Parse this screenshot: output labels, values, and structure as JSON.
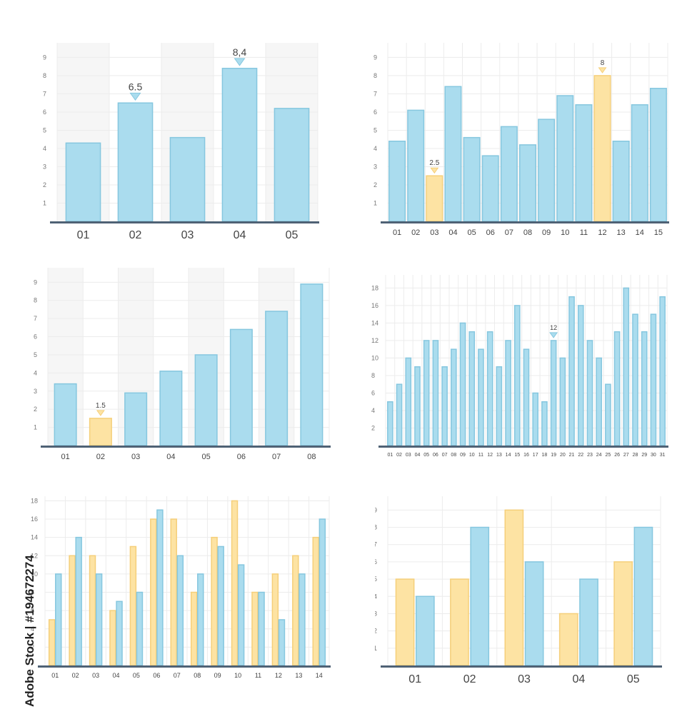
{
  "colors": {
    "blue_fill": "#aadcee",
    "blue_stroke": "#86c7df",
    "yellow_fill": "#fde3a3",
    "yellow_stroke": "#f5cf7a",
    "baseline": "#4f6275",
    "grid": "#ececec",
    "band": "#f6f6f6",
    "tick_text": "#777777",
    "label_text": "#444444"
  },
  "watermark_text": "Adobe Stock | #194672274",
  "chart_data": [
    {
      "type": "bar",
      "categories": [
        "01",
        "02",
        "03",
        "04",
        "05"
      ],
      "series": [
        {
          "values": [
            4.3,
            6.5,
            4.6,
            8.4,
            6.2
          ]
        }
      ],
      "highlight": [],
      "annotations": [
        {
          "index": 1,
          "label": "6.5"
        },
        {
          "index": 3,
          "label": "8,4"
        }
      ],
      "ylim": [
        0,
        9.8
      ],
      "yticks": [
        "1",
        "2",
        "3",
        "4",
        "5",
        "6",
        "7",
        "8",
        "9"
      ],
      "bands": true,
      "xlabel": "",
      "ylabel": "",
      "title": ""
    },
    {
      "type": "bar",
      "categories": [
        "01",
        "02",
        "03",
        "04",
        "05",
        "06",
        "07",
        "08",
        "09",
        "10",
        "11",
        "12",
        "13",
        "14",
        "15"
      ],
      "series": [
        {
          "values": [
            4.4,
            6.1,
            2.5,
            7.4,
            4.6,
            3.6,
            5.2,
            4.2,
            5.6,
            6.9,
            6.4,
            8,
            4.4,
            6.4,
            7.3
          ]
        }
      ],
      "highlight": [
        2,
        11
      ],
      "annotations": [
        {
          "index": 2,
          "label": "2.5"
        },
        {
          "index": 11,
          "label": "8"
        }
      ],
      "ylim": [
        0,
        9.8
      ],
      "yticks": [
        "1",
        "2",
        "3",
        "4",
        "5",
        "6",
        "7",
        "8",
        "9"
      ],
      "bands": false,
      "xlabel": "",
      "ylabel": "",
      "title": ""
    },
    {
      "type": "bar",
      "categories": [
        "01",
        "02",
        "03",
        "04",
        "05",
        "06",
        "07",
        "08"
      ],
      "series": [
        {
          "values": [
            3.4,
            1.5,
            2.9,
            4.1,
            5.0,
            6.4,
            7.4,
            8.9
          ]
        }
      ],
      "highlight": [
        1
      ],
      "annotations": [
        {
          "index": 1,
          "label": "1.5"
        }
      ],
      "ylim": [
        0,
        9.8
      ],
      "yticks": [
        "1",
        "2",
        "3",
        "4",
        "5",
        "6",
        "7",
        "8",
        "9"
      ],
      "bands": true,
      "xlabel": "",
      "ylabel": "",
      "title": ""
    },
    {
      "type": "bar",
      "categories": [
        "01",
        "02",
        "03",
        "04",
        "05",
        "06",
        "07",
        "08",
        "09",
        "10",
        "11",
        "12",
        "13",
        "14",
        "15",
        "16",
        "17",
        "18",
        "19",
        "20",
        "21",
        "22",
        "23",
        "24",
        "25",
        "26",
        "27",
        "28",
        "29",
        "30",
        "31"
      ],
      "series": [
        {
          "values": [
            5,
            7,
            10,
            9,
            12,
            12,
            9,
            11,
            14,
            13,
            11,
            13,
            9,
            12,
            16,
            11,
            6,
            5,
            12,
            10,
            17,
            16,
            12,
            10,
            7,
            13,
            18,
            15,
            13,
            15,
            17
          ]
        }
      ],
      "highlight": [],
      "annotations": [
        {
          "index": 18,
          "label": "12"
        }
      ],
      "ylim": [
        0,
        19.5
      ],
      "yticks": [
        "2",
        "4",
        "6",
        "8",
        "10",
        "12",
        "14",
        "16",
        "18"
      ],
      "bands": false,
      "xlabel": "",
      "ylabel": "",
      "title": ""
    },
    {
      "type": "bar",
      "categories": [
        "01",
        "02",
        "03",
        "04",
        "05",
        "06",
        "07",
        "08",
        "09",
        "10",
        "11",
        "12",
        "13",
        "14"
      ],
      "series": [
        {
          "values": [
            5,
            12,
            12,
            6,
            13,
            16,
            16,
            8,
            14,
            18,
            8,
            10,
            12,
            14
          ]
        },
        {
          "values": [
            10,
            14,
            10,
            7,
            8,
            17,
            12,
            10,
            13,
            11,
            8,
            5,
            10,
            16
          ]
        }
      ],
      "annotations": [],
      "ylim": [
        0,
        18.5
      ],
      "yticks": [
        "2",
        "4",
        "6",
        "8",
        "10",
        "12",
        "14",
        "16",
        "18"
      ],
      "bands": false,
      "xlabel": "",
      "ylabel": "",
      "title": ""
    },
    {
      "type": "bar",
      "categories": [
        "01",
        "02",
        "03",
        "04",
        "05"
      ],
      "series": [
        {
          "values": [
            5,
            5,
            9,
            3,
            6
          ]
        },
        {
          "values": [
            4,
            8,
            6,
            5,
            8
          ]
        }
      ],
      "annotations": [],
      "ylim": [
        0,
        9.8
      ],
      "yticks": [
        "1",
        "2",
        "3",
        "4",
        "5",
        "6",
        "7",
        "8",
        "9"
      ],
      "bands": false,
      "xlabel": "",
      "ylabel": "",
      "title": ""
    }
  ]
}
